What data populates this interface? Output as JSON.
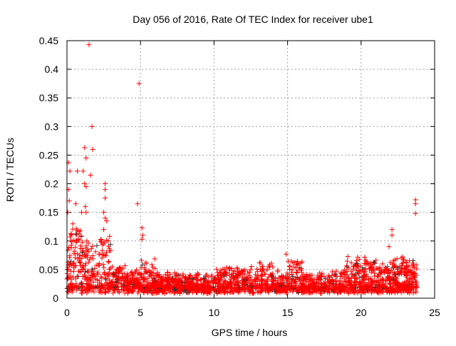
{
  "chart_data": {
    "type": "scatter",
    "title": "Day 056 of 2016, Rate Of TEC Index for receiver ube1",
    "xlabel": "GPS time / hours",
    "ylabel": "ROTI / TECUs",
    "xlim": [
      0,
      25
    ],
    "ylim": [
      0,
      0.45
    ],
    "xticks": [
      "0",
      "5",
      "10",
      "15",
      "20",
      "25"
    ],
    "xtick_values": [
      0,
      5,
      10,
      15,
      20,
      25
    ],
    "yticks": [
      "0",
      "0.05",
      "0.1",
      "0.15",
      "0.2",
      "0.25",
      "0.3",
      "0.35",
      "0.4",
      "0.45"
    ],
    "ytick_values": [
      0,
      0.05,
      0.1,
      0.15,
      0.2,
      0.25,
      0.3,
      0.35,
      0.4,
      0.45
    ],
    "grid": true,
    "marker": "plus",
    "colors": {
      "primary": "#ff0000",
      "secondary": "#333333",
      "grid": "#a0a0a0"
    },
    "data_span_hours": [
      0,
      23.8
    ],
    "baseline_min": 0.008,
    "hourly_typical_max": [
      0.12,
      0.09,
      0.1,
      0.05,
      0.04,
      0.06,
      0.035,
      0.035,
      0.035,
      0.035,
      0.045,
      0.045,
      0.045,
      0.055,
      0.04,
      0.06,
      0.035,
      0.035,
      0.045,
      0.06,
      0.06,
      0.055,
      0.07,
      0.06
    ],
    "outliers": [
      [
        1.5,
        0.443
      ],
      [
        4.9,
        0.375
      ],
      [
        1.7,
        0.3
      ],
      [
        1.2,
        0.263
      ],
      [
        1.75,
        0.26
      ],
      [
        1.3,
        0.245
      ],
      [
        0.1,
        0.237
      ],
      [
        0.2,
        0.222
      ],
      [
        0.7,
        0.222
      ],
      [
        1.1,
        0.222
      ],
      [
        1.6,
        0.215
      ],
      [
        2.6,
        0.2
      ],
      [
        2.6,
        0.19
      ],
      [
        0.1,
        0.19
      ],
      [
        0.15,
        0.17
      ],
      [
        1.2,
        0.2
      ],
      [
        1.3,
        0.195
      ],
      [
        2.6,
        0.175
      ],
      [
        4.8,
        0.165
      ],
      [
        23.7,
        0.172
      ],
      [
        23.7,
        0.165
      ],
      [
        23.7,
        0.148
      ],
      [
        5.1,
        0.123
      ],
      [
        5.15,
        0.11
      ],
      [
        5.1,
        0.103
      ],
      [
        22.1,
        0.12
      ],
      [
        22.1,
        0.11
      ],
      [
        0.05,
        0.15
      ],
      [
        1.3,
        0.15
      ],
      [
        2.5,
        0.15
      ],
      [
        2.6,
        0.14
      ],
      [
        0.4,
        0.13
      ],
      [
        1.0,
        0.15
      ],
      [
        1.35,
        0.1
      ],
      [
        1.4,
        0.085
      ],
      [
        2.5,
        0.12
      ],
      [
        2.8,
        0.1
      ],
      [
        14.9,
        0.077
      ],
      [
        19.1,
        0.073
      ],
      [
        13.1,
        0.062
      ],
      [
        21.9,
        0.09
      ],
      [
        0.3,
        0.11
      ],
      [
        0.25,
        0.1
      ],
      [
        0.6,
        0.165
      ],
      [
        2.7,
        0.135
      ],
      [
        1.25,
        0.16
      ]
    ]
  }
}
